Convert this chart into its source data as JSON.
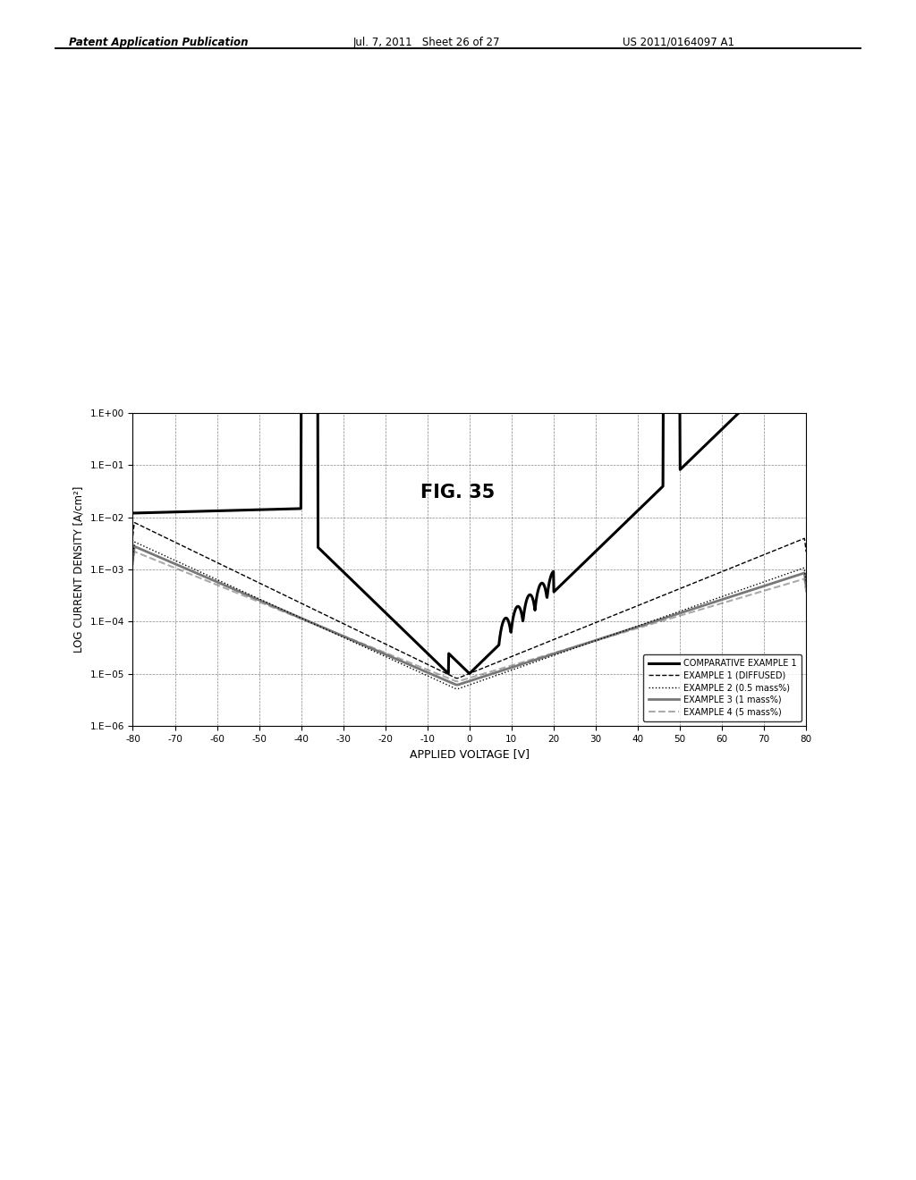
{
  "title": "FIG. 35",
  "xlabel": "APPLIED VOLTAGE [V]",
  "ylabel": "LOG CURRENT DENSITY [A/cm²]",
  "header_left": "Patent Application Publication",
  "header_mid": "Jul. 7, 2011   Sheet 26 of 27",
  "header_right": "US 2011/0164097 A1",
  "xlim": [
    -80,
    80
  ],
  "xticks": [
    -80,
    -70,
    -60,
    -50,
    -40,
    -30,
    -20,
    -10,
    0,
    10,
    20,
    30,
    40,
    50,
    60,
    70,
    80
  ],
  "ytick_labels": [
    "1.E−06",
    "1.E−05",
    "1.E−04",
    "1.E−03",
    "1.E−02",
    "1.E−01",
    "1.E+00"
  ],
  "ytick_values": [
    1e-06,
    1e-05,
    0.0001,
    0.001,
    0.01,
    0.1,
    1.0
  ],
  "background_color": "#ffffff",
  "legend_entries": [
    {
      "label": "COMPARATIVE EXAMPLE 1",
      "color": "#000000",
      "lw": 2.2,
      "ls": "solid"
    },
    {
      "label": "EXAMPLE 1 (DIFFUSED)",
      "color": "#000000",
      "lw": 1.0,
      "ls": "dashed"
    },
    {
      "label": "EXAMPLE 2 (0.5 mass%)",
      "color": "#000000",
      "lw": 1.0,
      "ls": "dotted"
    },
    {
      "label": "EXAMPLE 3 (1 mass%)",
      "color": "#888888",
      "lw": 2.0,
      "ls": "solid"
    },
    {
      "label": "EXAMPLE 4 (5 mass%)",
      "color": "#aaaaaa",
      "lw": 1.5,
      "ls": "dashed"
    }
  ]
}
